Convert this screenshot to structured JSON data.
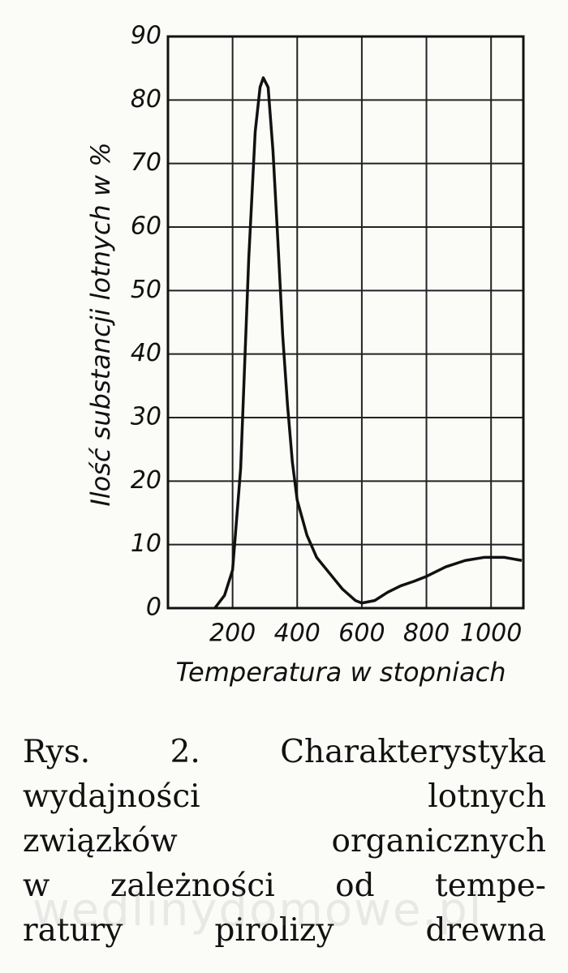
{
  "chart_data": {
    "type": "line",
    "x_label": "Temperatura w stopniach",
    "y_label": "Ilość substancji lotnych w %",
    "x": [
      145,
      175,
      200,
      225,
      250,
      270,
      285,
      295,
      310,
      325,
      340,
      355,
      370,
      385,
      400,
      430,
      460,
      500,
      540,
      580,
      600,
      640,
      680,
      720,
      760,
      800,
      860,
      920,
      980,
      1040,
      1095
    ],
    "series": [
      {
        "color": "#111111",
        "values": [
          0,
          2,
          6,
          22,
          55,
          75,
          82,
          83.5,
          82,
          72,
          58,
          43,
          32,
          23,
          17,
          11.5,
          8,
          5.5,
          3,
          1.2,
          0.8,
          1.2,
          2.5,
          3.5,
          4.2,
          5,
          6.5,
          7.5,
          8,
          8,
          7.5
        ]
      }
    ],
    "xlim": [
      0,
      1100
    ],
    "xticks": [
      200,
      400,
      600,
      800,
      1000
    ],
    "ylim": [
      0,
      90
    ],
    "yticks": [
      0,
      10,
      20,
      30,
      40,
      50,
      60,
      70,
      80,
      90
    ],
    "grid": true
  },
  "caption": [
    "Rys. 2. Charakterystyka",
    "wydajności lotnych",
    "związków organicznych",
    "w zależności od tempe-",
    "ratury pirolizy drewna"
  ],
  "watermark": "wedlinydomowe.pl"
}
